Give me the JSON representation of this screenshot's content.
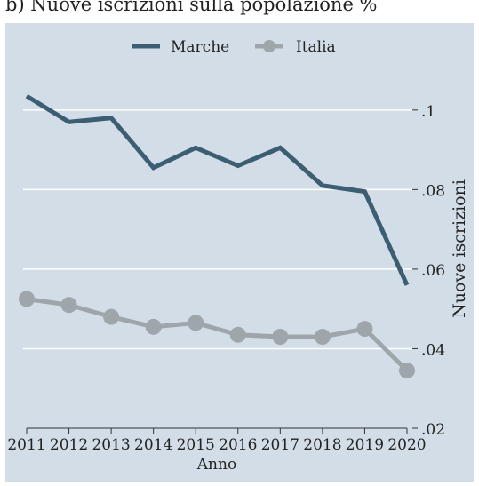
{
  "chart_data": {
    "type": "line",
    "title": "b) Nuove iscrizioni sulla popolazione %",
    "xlabel": "Anno",
    "ylabel": "Nuove iscrizioni",
    "x": [
      "2011",
      "2012",
      "2013",
      "2014",
      "2015",
      "2016",
      "2017",
      "2018",
      "2019",
      "2020"
    ],
    "ylim": [
      0.02,
      0.108
    ],
    "yticks": [
      {
        "value": 0.1,
        "label": ".1"
      },
      {
        "value": 0.08,
        "label": ".08"
      },
      {
        "value": 0.06,
        "label": ".06"
      },
      {
        "value": 0.04,
        "label": ".04"
      },
      {
        "value": 0.02,
        "label": ".02"
      }
    ],
    "grid": true,
    "legend_position": "top",
    "y_axis_side": "right",
    "series": [
      {
        "name": "Marche",
        "color": "#3c5e73",
        "markers": false,
        "values": [
          0.1035,
          0.097,
          0.098,
          0.0855,
          0.0905,
          0.086,
          0.0905,
          0.081,
          0.0795,
          0.056
        ]
      },
      {
        "name": "Italia",
        "color": "#9fa6ab",
        "markers": true,
        "values": [
          0.0525,
          0.051,
          0.048,
          0.0455,
          0.0465,
          0.0435,
          0.043,
          0.043,
          0.045,
          0.0345
        ]
      }
    ],
    "background_color": "#d3dde7",
    "grid_color": "#ffffff"
  }
}
